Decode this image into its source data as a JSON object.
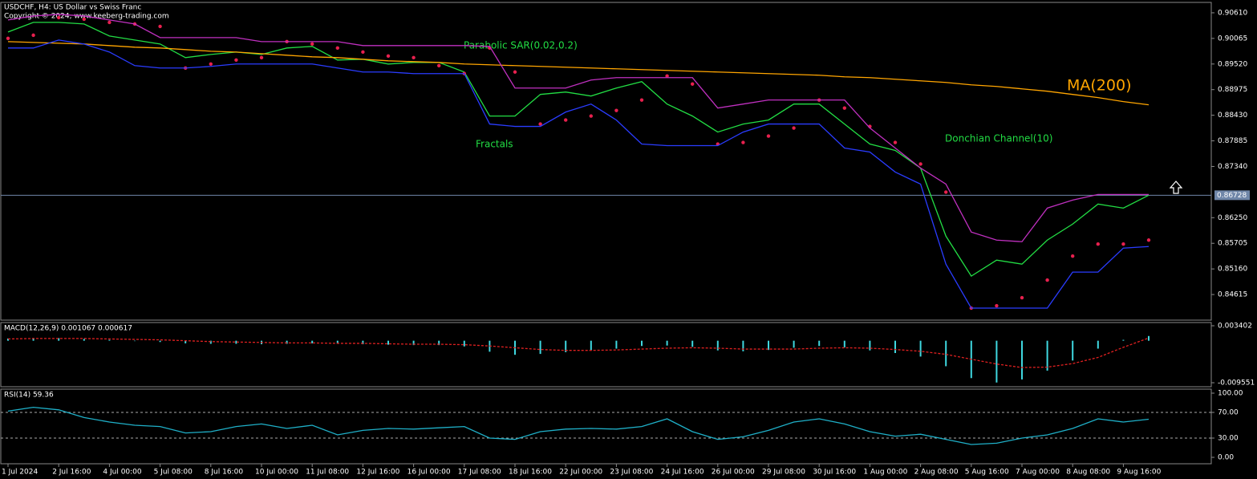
{
  "chart_data": [
    {
      "type": "line",
      "title": "USDCHF, H4:  US Dollar vs Swiss Franc",
      "subtitle": "Copyright © 2024, www.keeberg-trading.com",
      "categories": [
        "1 Jul 2024",
        null,
        "2 Jul 16:00",
        null,
        "4 Jul 00:00",
        null,
        "5 Jul 08:00",
        null,
        "8 Jul 16:00",
        null,
        "10 Jul 00:00",
        null,
        "11 Jul 08:00",
        null,
        "12 Jul 16:00",
        null,
        "16 Jul 00:00",
        null,
        "17 Jul 08:00",
        null,
        "18 Jul 16:00",
        null,
        "22 Jul 00:00",
        null,
        "23 Jul 08:00",
        null,
        "24 Jul 16:00",
        null,
        "26 Jul 00:00",
        null,
        "29 Jul 08:00",
        null,
        "30 Jul 16:00",
        null,
        "1 Aug 00:00",
        null,
        "2 Aug 08:00",
        null,
        "5 Aug 16:00",
        null,
        "7 Aug 00:00",
        null,
        "8 Aug 08:00",
        null,
        "9 Aug 16:00",
        null
      ],
      "series": [
        {
          "color": "#22dd44",
          "type": "line",
          "values": [
            0.90201,
            0.90406,
            0.90406,
            0.90372,
            0.90116,
            0.90031,
            0.89946,
            0.89656,
            0.89724,
            0.89775,
            0.89724,
            0.89861,
            0.89895,
            0.89605,
            0.89622,
            0.8952,
            0.89554,
            0.89554,
            0.8935,
            0.88413,
            0.88413,
            0.88873,
            0.88924,
            0.88839,
            0.89009,
            0.89145,
            0.88668,
            0.88413,
            0.88072,
            0.88243,
            0.88328,
            0.88668,
            0.88668,
            0.88243,
            0.87817,
            0.87681,
            0.87306,
            0.85858,
            0.85007,
            0.85347,
            0.85262,
            0.85773,
            0.86114,
            0.8654,
            0.86454,
            0.86728
          ]
        },
        {
          "name": "MA(200)",
          "color": "#ffa500",
          "type": "line",
          "values": [
            0.89997,
            0.8998,
            0.89963,
            0.89946,
            0.89912,
            0.89878,
            0.89861,
            0.89827,
            0.89792,
            0.89775,
            0.89741,
            0.89707,
            0.89673,
            0.89656,
            0.89622,
            0.89588,
            0.89571,
            0.89554,
            0.8952,
            0.89503,
            0.89486,
            0.89469,
            0.89452,
            0.89435,
            0.89418,
            0.89401,
            0.89384,
            0.89367,
            0.8935,
            0.89333,
            0.89316,
            0.89299,
            0.89282,
            0.89248,
            0.89231,
            0.89196,
            0.89162,
            0.89128,
            0.89077,
            0.89043,
            0.88992,
            0.88941,
            0.88873,
            0.88805,
            0.8872,
            0.88652
          ]
        },
        {
          "name": "Parabolic SAR(0.02,0.2)",
          "color": "#e8204e",
          "type": "dots",
          "values": [
            0.90065,
            0.90133,
            0.90508,
            0.90474,
            0.90406,
            0.90372,
            0.9032,
            0.89435,
            0.8952,
            0.89605,
            0.89656,
            0.89997,
            0.89946,
            0.89861,
            0.89775,
            0.8969,
            0.89656,
            0.89486,
            0.89316,
            0.89861,
            0.8935,
            0.88243,
            0.88328,
            0.88413,
            0.88532,
            0.88754,
            0.89265,
            0.89094,
            0.87817,
            0.87851,
            0.87987,
            0.88158,
            0.88754,
            0.88583,
            0.88192,
            0.87851,
            0.87391,
            0.86795,
            0.84326,
            0.84377,
            0.84547,
            0.84922,
            0.85433,
            0.85688,
            0.85688,
            0.85773
          ]
        },
        {
          "name": "Donchian Channel(10)",
          "color": "#c030c0",
          "type": "line",
          "values": [
            0.90457,
            0.90542,
            0.90576,
            0.90542,
            0.90457,
            0.90372,
            0.90082,
            0.90082,
            0.90082,
            0.90082,
            0.89997,
            0.89997,
            0.89997,
            0.89997,
            0.89912,
            0.89912,
            0.89912,
            0.89912,
            0.89912,
            0.89895,
            0.89009,
            0.89009,
            0.89009,
            0.89179,
            0.8923,
            0.8923,
            0.8923,
            0.8923,
            0.88583,
            0.88668,
            0.88754,
            0.88754,
            0.88754,
            0.88754,
            0.88158,
            0.87732,
            0.87306,
            0.86965,
            0.85944,
            0.85773,
            0.85739,
            0.86454,
            0.86625,
            0.86744,
            0.86744,
            0.86744
          ]
        },
        {
          "color": "#2a3cff",
          "type": "line",
          "values": [
            0.89861,
            0.89861,
            0.90031,
            0.89946,
            0.89775,
            0.89486,
            0.89435,
            0.89435,
            0.89469,
            0.8952,
            0.8952,
            0.8952,
            0.8952,
            0.89435,
            0.8935,
            0.8935,
            0.89316,
            0.89316,
            0.89316,
            0.88243,
            0.88192,
            0.88192,
            0.88498,
            0.88668,
            0.88328,
            0.87817,
            0.87783,
            0.87783,
            0.87783,
            0.88072,
            0.88243,
            0.88243,
            0.88243,
            0.87732,
            0.87647,
            0.87221,
            0.86965,
            0.85262,
            0.84326,
            0.84326,
            0.84326,
            0.84326,
            0.85092,
            0.85092,
            0.85603,
            0.85637
          ]
        }
      ],
      "annotations": [
        "Fractals"
      ],
      "last_price": 0.86728,
      "ylim": [
        0.8407,
        0.90831
      ],
      "yticks": [
        {
          "value": 0.9061,
          "label": "0.90610"
        },
        {
          "value": 0.90065,
          "label": "0.90065"
        },
        {
          "value": 0.8952,
          "label": "0.89520"
        },
        {
          "value": 0.88975,
          "label": "0.88975"
        },
        {
          "value": 0.8843,
          "label": "0.88430"
        },
        {
          "value": 0.87885,
          "label": "0.87885"
        },
        {
          "value": 0.8734,
          "label": "0.87340"
        },
        {
          "value": 0.8625,
          "label": "0.86250"
        },
        {
          "value": 0.85705,
          "label": "0.85705"
        },
        {
          "value": 0.8516,
          "label": "0.85160"
        },
        {
          "value": 0.84615,
          "label": "0.84615"
        }
      ]
    },
    {
      "type": "bar",
      "title": "MACD(12,26,9) 0.001067 0.000617",
      "series": [
        {
          "color": "#3fd8e0",
          "type": "bar",
          "values": [
            0.0005,
            0.0006,
            0.0006,
            0.0004,
            0.0002,
            0.0,
            -0.0003,
            -0.0006,
            -0.0007,
            -0.0007,
            -0.0008,
            -0.0007,
            -0.0006,
            -0.0007,
            -0.0008,
            -0.0009,
            -0.001,
            -0.001,
            -0.0013,
            -0.0025,
            -0.0032,
            -0.003,
            -0.0026,
            -0.0022,
            -0.0018,
            -0.0012,
            -0.0011,
            -0.0014,
            -0.0022,
            -0.0024,
            -0.0021,
            -0.0016,
            -0.0012,
            -0.0015,
            -0.0022,
            -0.0028,
            -0.0036,
            -0.0058,
            -0.0085,
            -0.0095,
            -0.0088,
            -0.0068,
            -0.0045,
            -0.0018,
            0.0002,
            0.001067
          ]
        },
        {
          "color": "#e02020",
          "type": "line",
          "dash": true,
          "values": [
            0.0004,
            0.0005,
            0.0005,
            0.0005,
            0.0004,
            0.0003,
            0.0002,
            0.0,
            -0.0002,
            -0.0003,
            -0.0004,
            -0.0005,
            -0.0005,
            -0.0006,
            -0.0006,
            -0.0007,
            -0.0008,
            -0.0008,
            -0.0009,
            -0.0012,
            -0.0016,
            -0.002,
            -0.0022,
            -0.0022,
            -0.0021,
            -0.0019,
            -0.0017,
            -0.0016,
            -0.0017,
            -0.0019,
            -0.0019,
            -0.0019,
            -0.0017,
            -0.0016,
            -0.0017,
            -0.002,
            -0.0024,
            -0.0031,
            -0.0042,
            -0.0053,
            -0.0061,
            -0.006,
            -0.0052,
            -0.0038,
            -0.0015,
            0.000617
          ]
        }
      ],
      "ylim": [
        -0.01046,
        0.00413
      ],
      "yticks": [
        0.003402,
        -0.009551
      ]
    },
    {
      "type": "line",
      "title": "RSI(14) 59.36",
      "series": [
        {
          "color": "#1fb0c8",
          "type": "line",
          "values": [
            72,
            78,
            74,
            62,
            55,
            50,
            48,
            38,
            40,
            48,
            52,
            45,
            50,
            35,
            42,
            45,
            44,
            46,
            48,
            30,
            28,
            40,
            44,
            45,
            44,
            48,
            60,
            40,
            28,
            32,
            42,
            55,
            60,
            52,
            40,
            33,
            36,
            28,
            20,
            22,
            30,
            35,
            45,
            60,
            55,
            59.36
          ]
        }
      ],
      "levels": [
        70,
        30
      ],
      "ylim": [
        -10,
        106.25
      ],
      "yticks": [
        {
          "value": 100,
          "label": "100.00"
        },
        {
          "value": 70,
          "label": "70.00"
        },
        {
          "value": 30,
          "label": "30.00"
        },
        {
          "value": 0,
          "label": "0.00"
        }
      ]
    }
  ]
}
